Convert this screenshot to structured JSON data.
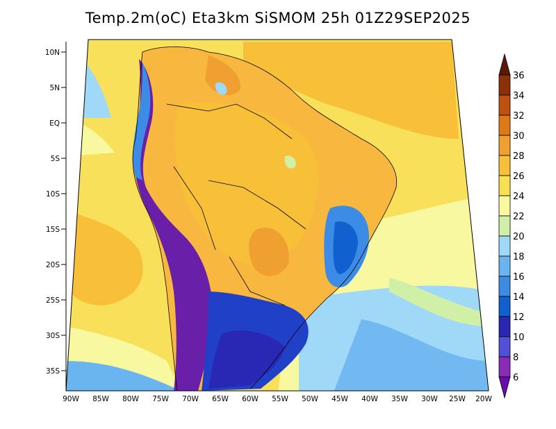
{
  "title": "Temp.2m(oC) Eta3km SiSMOM 25h 01Z29SEP2025",
  "lat_labels": [
    "10N",
    "5N",
    "EQ",
    "5S",
    "10S",
    "15S",
    "20S",
    "25S",
    "30S",
    "35S"
  ],
  "lon_labels": [
    "90W",
    "85W",
    "80W",
    "75W",
    "70W",
    "65W",
    "60W",
    "55W",
    "50W",
    "45W",
    "40W",
    "35W",
    "30W",
    "25W",
    "20W"
  ],
  "colorbar": {
    "labels": [
      "6",
      "8",
      "10",
      "12",
      "14",
      "16",
      "18",
      "20",
      "22",
      "24",
      "26",
      "28",
      "30",
      "32",
      "34",
      "36"
    ],
    "colors": [
      "#6a0dad",
      "#8a2bb8",
      "#5050d8",
      "#2828b4",
      "#1060d0",
      "#3c8ce6",
      "#6ab4f0",
      "#a0d8f8",
      "#d0f0a8",
      "#f8f8a0",
      "#f8e050",
      "#f8c038",
      "#f0a030",
      "#e07818",
      "#c05010",
      "#8c3008",
      "#5a1a04"
    ]
  },
  "legend_colors": {
    "ocean_warm": "#f8e060",
    "ocean_cool": "#f8f8a0",
    "land_hot": "#f8b840",
    "andes_cold": "#6a1fa8",
    "south_cold": "#2040c8"
  }
}
